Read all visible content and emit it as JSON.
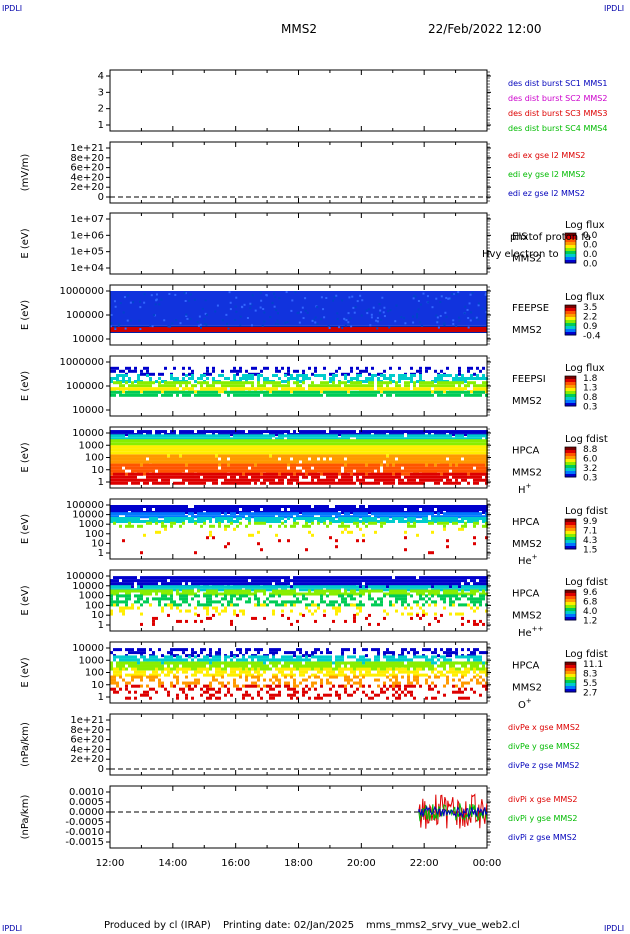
{
  "corner_label": "IPDLI",
  "header": {
    "mission": "MMS2",
    "datetime": "22/Feb/2022 12:00"
  },
  "footer": {
    "produced": "Produced by cl (IRAP)",
    "printing": "Printing date: 02/Jan/2025",
    "file": "mms_mms2_srvy_vue_web2.cl"
  },
  "time_axis": [
    "12:00",
    "14:00",
    "16:00",
    "18:00",
    "20:00",
    "22:00",
    "00:00"
  ],
  "colors": {
    "red": "#dd0000",
    "green": "#00bb00",
    "blue": "#0000bb",
    "magenta": "#cc00cc",
    "dark": "#000000"
  },
  "panels": [
    {
      "id": "des_dist",
      "type": "line",
      "ylabel": "",
      "ticks": [
        "4",
        "3",
        "2",
        "1"
      ],
      "labels": [
        {
          "text": "des dist burst SC1 MMS1",
          "color": "#0000bb"
        },
        {
          "text": "des dist burst SC2 MMS2",
          "color": "#cc00cc"
        },
        {
          "text": "des dist burst SC3 MMS3",
          "color": "#dd0000"
        },
        {
          "text": "des dist burst SC4 MMS4",
          "color": "#00bb00"
        }
      ]
    },
    {
      "id": "edi",
      "type": "line",
      "ylabel": "(mV/m)",
      "ticks": [
        "1e+21",
        "8e+20",
        "6e+20",
        "4e+20",
        "2e+20",
        "0"
      ],
      "labels": [
        {
          "text": "edi ex gse l2 MMS2",
          "color": "#dd0000"
        },
        {
          "text": "edi ey gse l2 MMS2",
          "color": "#00bb00"
        },
        {
          "text": "edi ez gse l2 MMS2",
          "color": "#0000bb"
        }
      ]
    },
    {
      "id": "eis",
      "type": "spec",
      "ylabel": "E (eV)",
      "ticks": [
        "1e+07",
        "1e+06",
        "1e+05",
        "1e+04"
      ],
      "inst": [
        "EIS",
        "MMS2"
      ],
      "overlay": "phxtof proton fa",
      "overlay_sub": "Hvy electron to",
      "cb_title": "Log flux",
      "cb": [
        "0.0",
        "0.0",
        "0.0",
        "0.0"
      ],
      "fill": "none"
    },
    {
      "id": "feeps_e",
      "type": "spec",
      "ylabel": "E (eV)",
      "ticks": [
        "1000000",
        "100000",
        "10000"
      ],
      "inst": [
        "FEEPSE",
        "MMS2"
      ],
      "cb_title": "Log flux",
      "cb": [
        "3.5",
        "2.2",
        "0.9",
        "-0.4"
      ],
      "fill": "feepse"
    },
    {
      "id": "feeps_i",
      "type": "spec",
      "ylabel": "E (eV)",
      "ticks": [
        "1000000",
        "100000",
        "10000"
      ],
      "inst": [
        "FEEPSI",
        "MMS2"
      ],
      "cb_title": "Log flux",
      "cb": [
        "1.8",
        "1.3",
        "0.8",
        "0.3"
      ],
      "fill": "feepsi"
    },
    {
      "id": "hpca_h",
      "type": "spec",
      "ylabel": "E (eV)",
      "ticks": [
        "10000",
        "1000",
        "100",
        "10",
        "1"
      ],
      "inst": [
        "HPCA",
        "MMS2"
      ],
      "species": "H",
      "sup": "+",
      "cb_title": "Log fdist",
      "cb": [
        "8.8",
        "6.0",
        "3.2",
        "0.3"
      ],
      "fill": "hpca_h"
    },
    {
      "id": "hpca_he",
      "type": "spec",
      "ylabel": "E (eV)",
      "ticks": [
        "100000",
        "10000",
        "1000",
        "100",
        "10",
        "1"
      ],
      "inst": [
        "HPCA",
        "MMS2"
      ],
      "species": "He",
      "sup": "+",
      "cb_title": "Log fdist",
      "cb": [
        "9.9",
        "7.1",
        "4.3",
        "1.5"
      ],
      "fill": "hpca_he"
    },
    {
      "id": "hpca_he2",
      "type": "spec",
      "ylabel": "E (eV)",
      "ticks": [
        "100000",
        "10000",
        "1000",
        "100",
        "10",
        "1"
      ],
      "inst": [
        "HPCA",
        "MMS2"
      ],
      "species": "He",
      "sup": "++",
      "cb_title": "Log fdist",
      "cb": [
        "9.6",
        "6.8",
        "4.0",
        "1.2"
      ],
      "fill": "hpca_he2"
    },
    {
      "id": "hpca_o",
      "type": "spec",
      "ylabel": "E (eV)",
      "ticks": [
        "10000",
        "1000",
        "100",
        "10",
        "1"
      ],
      "inst": [
        "HPCA",
        "MMS2"
      ],
      "species": "O",
      "sup": "+",
      "cb_title": "Log fdist",
      "cb": [
        "11.1",
        "8.3",
        "5.5",
        "2.7"
      ],
      "fill": "hpca_o"
    },
    {
      "id": "divpe",
      "type": "line",
      "ylabel": "(nPa/km)",
      "ticks": [
        "1e+21",
        "8e+20",
        "6e+20",
        "4e+20",
        "2e+20",
        "0"
      ],
      "labels": [
        {
          "text": "divPe x gse MMS2",
          "color": "#dd0000"
        },
        {
          "text": "divPe y gse MMS2",
          "color": "#00bb00"
        },
        {
          "text": "divPe z gse MMS2",
          "color": "#0000bb"
        }
      ]
    },
    {
      "id": "divpi",
      "type": "line",
      "ylabel": "(nPa/km)",
      "ticks": [
        "0.0010",
        "0.0005",
        "0.0000",
        "-0.0005",
        "-0.0010",
        "-0.0015"
      ],
      "labels": [
        {
          "text": "divPi x gse MMS2",
          "color": "#dd0000"
        },
        {
          "text": "divPi y gse MMS2",
          "color": "#00bb00"
        },
        {
          "text": "divPi z gse MMS2",
          "color": "#0000bb"
        }
      ]
    }
  ],
  "chart_data": [
    {
      "type": "line",
      "title": "des dist burst",
      "x": [
        "12:00",
        "14:00",
        "16:00",
        "18:00",
        "20:00",
        "22:00",
        "00:00"
      ],
      "ylim": [
        0.5,
        4.5
      ],
      "series": []
    },
    {
      "type": "line",
      "ylabel": "(mV/m)",
      "ylim": [
        0,
        1e+21
      ],
      "series": []
    },
    {
      "type": "heatmap",
      "ylabel": "E (eV)",
      "ylim": [
        10000.0,
        10000000.0
      ],
      "scale": "log",
      "note": "no data"
    },
    {
      "type": "heatmap",
      "ylabel": "E (eV)",
      "ylim": [
        10000.0,
        1000000.0
      ],
      "scale": "log",
      "colorbar": [
        3.5,
        2.2,
        0.9,
        -0.4
      ]
    },
    {
      "type": "heatmap",
      "ylabel": "E (eV)",
      "ylim": [
        10000.0,
        1000000.0
      ],
      "scale": "log",
      "colorbar": [
        1.8,
        1.3,
        0.8,
        0.3
      ]
    },
    {
      "type": "heatmap",
      "ylabel": "E (eV)",
      "ylim": [
        1,
        10000.0
      ],
      "scale": "log",
      "colorbar": [
        8.8,
        6.0,
        3.2,
        0.3
      ]
    },
    {
      "type": "heatmap",
      "ylabel": "E (eV)",
      "ylim": [
        1,
        100000.0
      ],
      "scale": "log",
      "colorbar": [
        9.9,
        7.1,
        4.3,
        1.5
      ]
    },
    {
      "type": "heatmap",
      "ylabel": "E (eV)",
      "ylim": [
        1,
        100000.0
      ],
      "scale": "log",
      "colorbar": [
        9.6,
        6.8,
        4.0,
        1.2
      ]
    },
    {
      "type": "heatmap",
      "ylabel": "E (eV)",
      "ylim": [
        1,
        10000.0
      ],
      "scale": "log",
      "colorbar": [
        11.1,
        8.3,
        5.5,
        2.7
      ]
    },
    {
      "type": "line",
      "ylabel": "(nPa/km)",
      "ylim": [
        0,
        1e+21
      ],
      "series": []
    },
    {
      "type": "line",
      "ylabel": "(nPa/km)",
      "ylim": [
        -0.0015,
        0.0012
      ],
      "series": [
        {
          "name": "divPi x gse MMS2",
          "x_range": [
            "21:50",
            "00:00"
          ],
          "y_range": [
            -0.0012,
            0.0011
          ]
        },
        {
          "name": "divPi y gse MMS2",
          "x_range": [
            "21:50",
            "00:00"
          ],
          "y_range": [
            -0.0006,
            0.0006
          ]
        },
        {
          "name": "divPi z gse MMS2",
          "x_range": [
            "21:50",
            "00:00"
          ],
          "y_range": [
            -0.0004,
            0.0004
          ]
        }
      ]
    }
  ]
}
